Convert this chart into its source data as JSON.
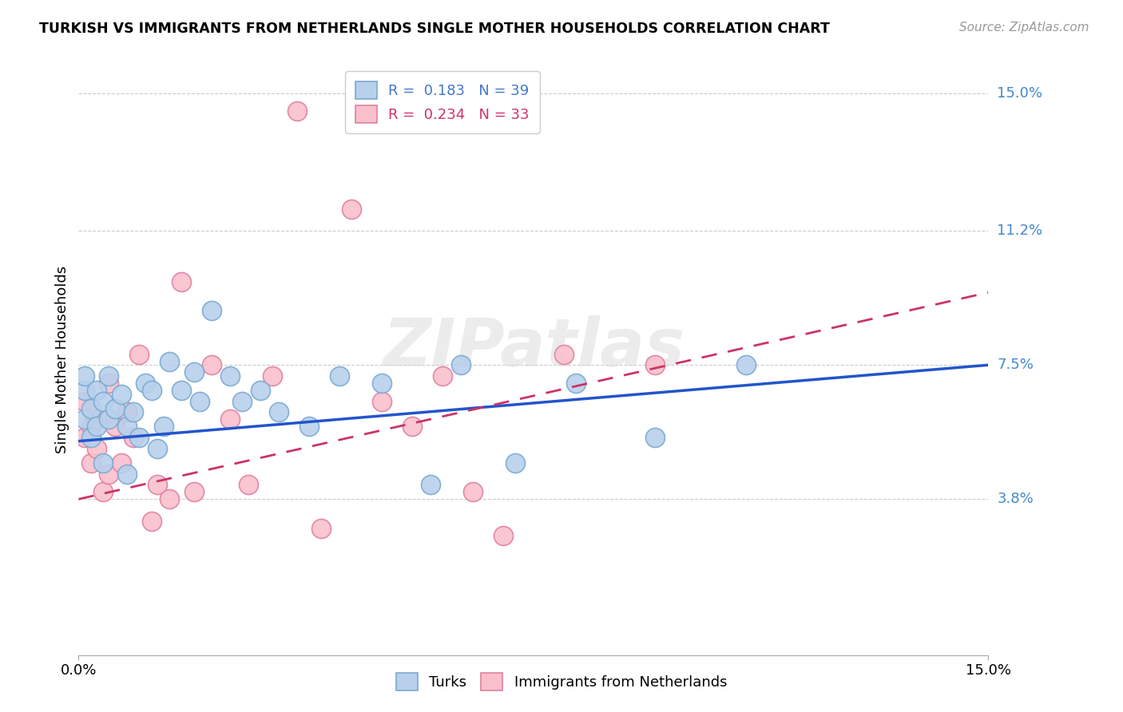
{
  "title": "TURKISH VS IMMIGRANTS FROM NETHERLANDS SINGLE MOTHER HOUSEHOLDS CORRELATION CHART",
  "source": "Source: ZipAtlas.com",
  "ylabel": "Single Mother Households",
  "xrange": [
    0.0,
    0.15
  ],
  "yrange": [
    -0.005,
    0.158
  ],
  "turks_color": "#b8d0ec",
  "turks_edge_color": "#7aaad0",
  "netherlands_color": "#f9c0cc",
  "netherlands_edge_color": "#e080a0",
  "line_turks_color": "#2255cc",
  "line_netherlands_color": "#cc3366",
  "watermark": "ZIPatlas",
  "turks_R": 0.183,
  "turks_N": 39,
  "netherlands_R": 0.234,
  "netherlands_N": 33,
  "turks_x": [
    0.001,
    0.001,
    0.001,
    0.002,
    0.002,
    0.003,
    0.003,
    0.004,
    0.004,
    0.005,
    0.005,
    0.006,
    0.007,
    0.008,
    0.008,
    0.009,
    0.01,
    0.011,
    0.012,
    0.013,
    0.014,
    0.015,
    0.017,
    0.019,
    0.02,
    0.022,
    0.025,
    0.027,
    0.03,
    0.033,
    0.038,
    0.043,
    0.05,
    0.058,
    0.063,
    0.072,
    0.082,
    0.095,
    0.11
  ],
  "turks_y": [
    0.06,
    0.068,
    0.072,
    0.055,
    0.063,
    0.068,
    0.058,
    0.065,
    0.048,
    0.06,
    0.072,
    0.063,
    0.067,
    0.058,
    0.045,
    0.062,
    0.055,
    0.07,
    0.068,
    0.052,
    0.058,
    0.076,
    0.068,
    0.073,
    0.065,
    0.09,
    0.072,
    0.065,
    0.068,
    0.062,
    0.058,
    0.072,
    0.07,
    0.042,
    0.075,
    0.048,
    0.07,
    0.055,
    0.075
  ],
  "netherlands_x": [
    0.001,
    0.001,
    0.002,
    0.002,
    0.003,
    0.003,
    0.004,
    0.005,
    0.005,
    0.006,
    0.007,
    0.008,
    0.009,
    0.01,
    0.012,
    0.013,
    0.015,
    0.017,
    0.019,
    0.022,
    0.025,
    0.028,
    0.032,
    0.036,
    0.04,
    0.045,
    0.05,
    0.055,
    0.06,
    0.065,
    0.07,
    0.08,
    0.095
  ],
  "netherlands_y": [
    0.055,
    0.065,
    0.048,
    0.058,
    0.052,
    0.06,
    0.04,
    0.045,
    0.07,
    0.058,
    0.048,
    0.062,
    0.055,
    0.078,
    0.032,
    0.042,
    0.038,
    0.098,
    0.04,
    0.075,
    0.06,
    0.042,
    0.072,
    0.145,
    0.03,
    0.118,
    0.065,
    0.058,
    0.072,
    0.04,
    0.028,
    0.078,
    0.075
  ],
  "ytick_vals": [
    0.038,
    0.075,
    0.112,
    0.15
  ],
  "ytick_labels": [
    "3.8%",
    "7.5%",
    "11.2%",
    "15.0%"
  ],
  "xtick_vals": [
    0.0,
    0.15
  ],
  "xtick_labels": [
    "0.0%",
    "15.0%"
  ],
  "grid_vals": [
    0.038,
    0.075,
    0.112,
    0.15
  ]
}
